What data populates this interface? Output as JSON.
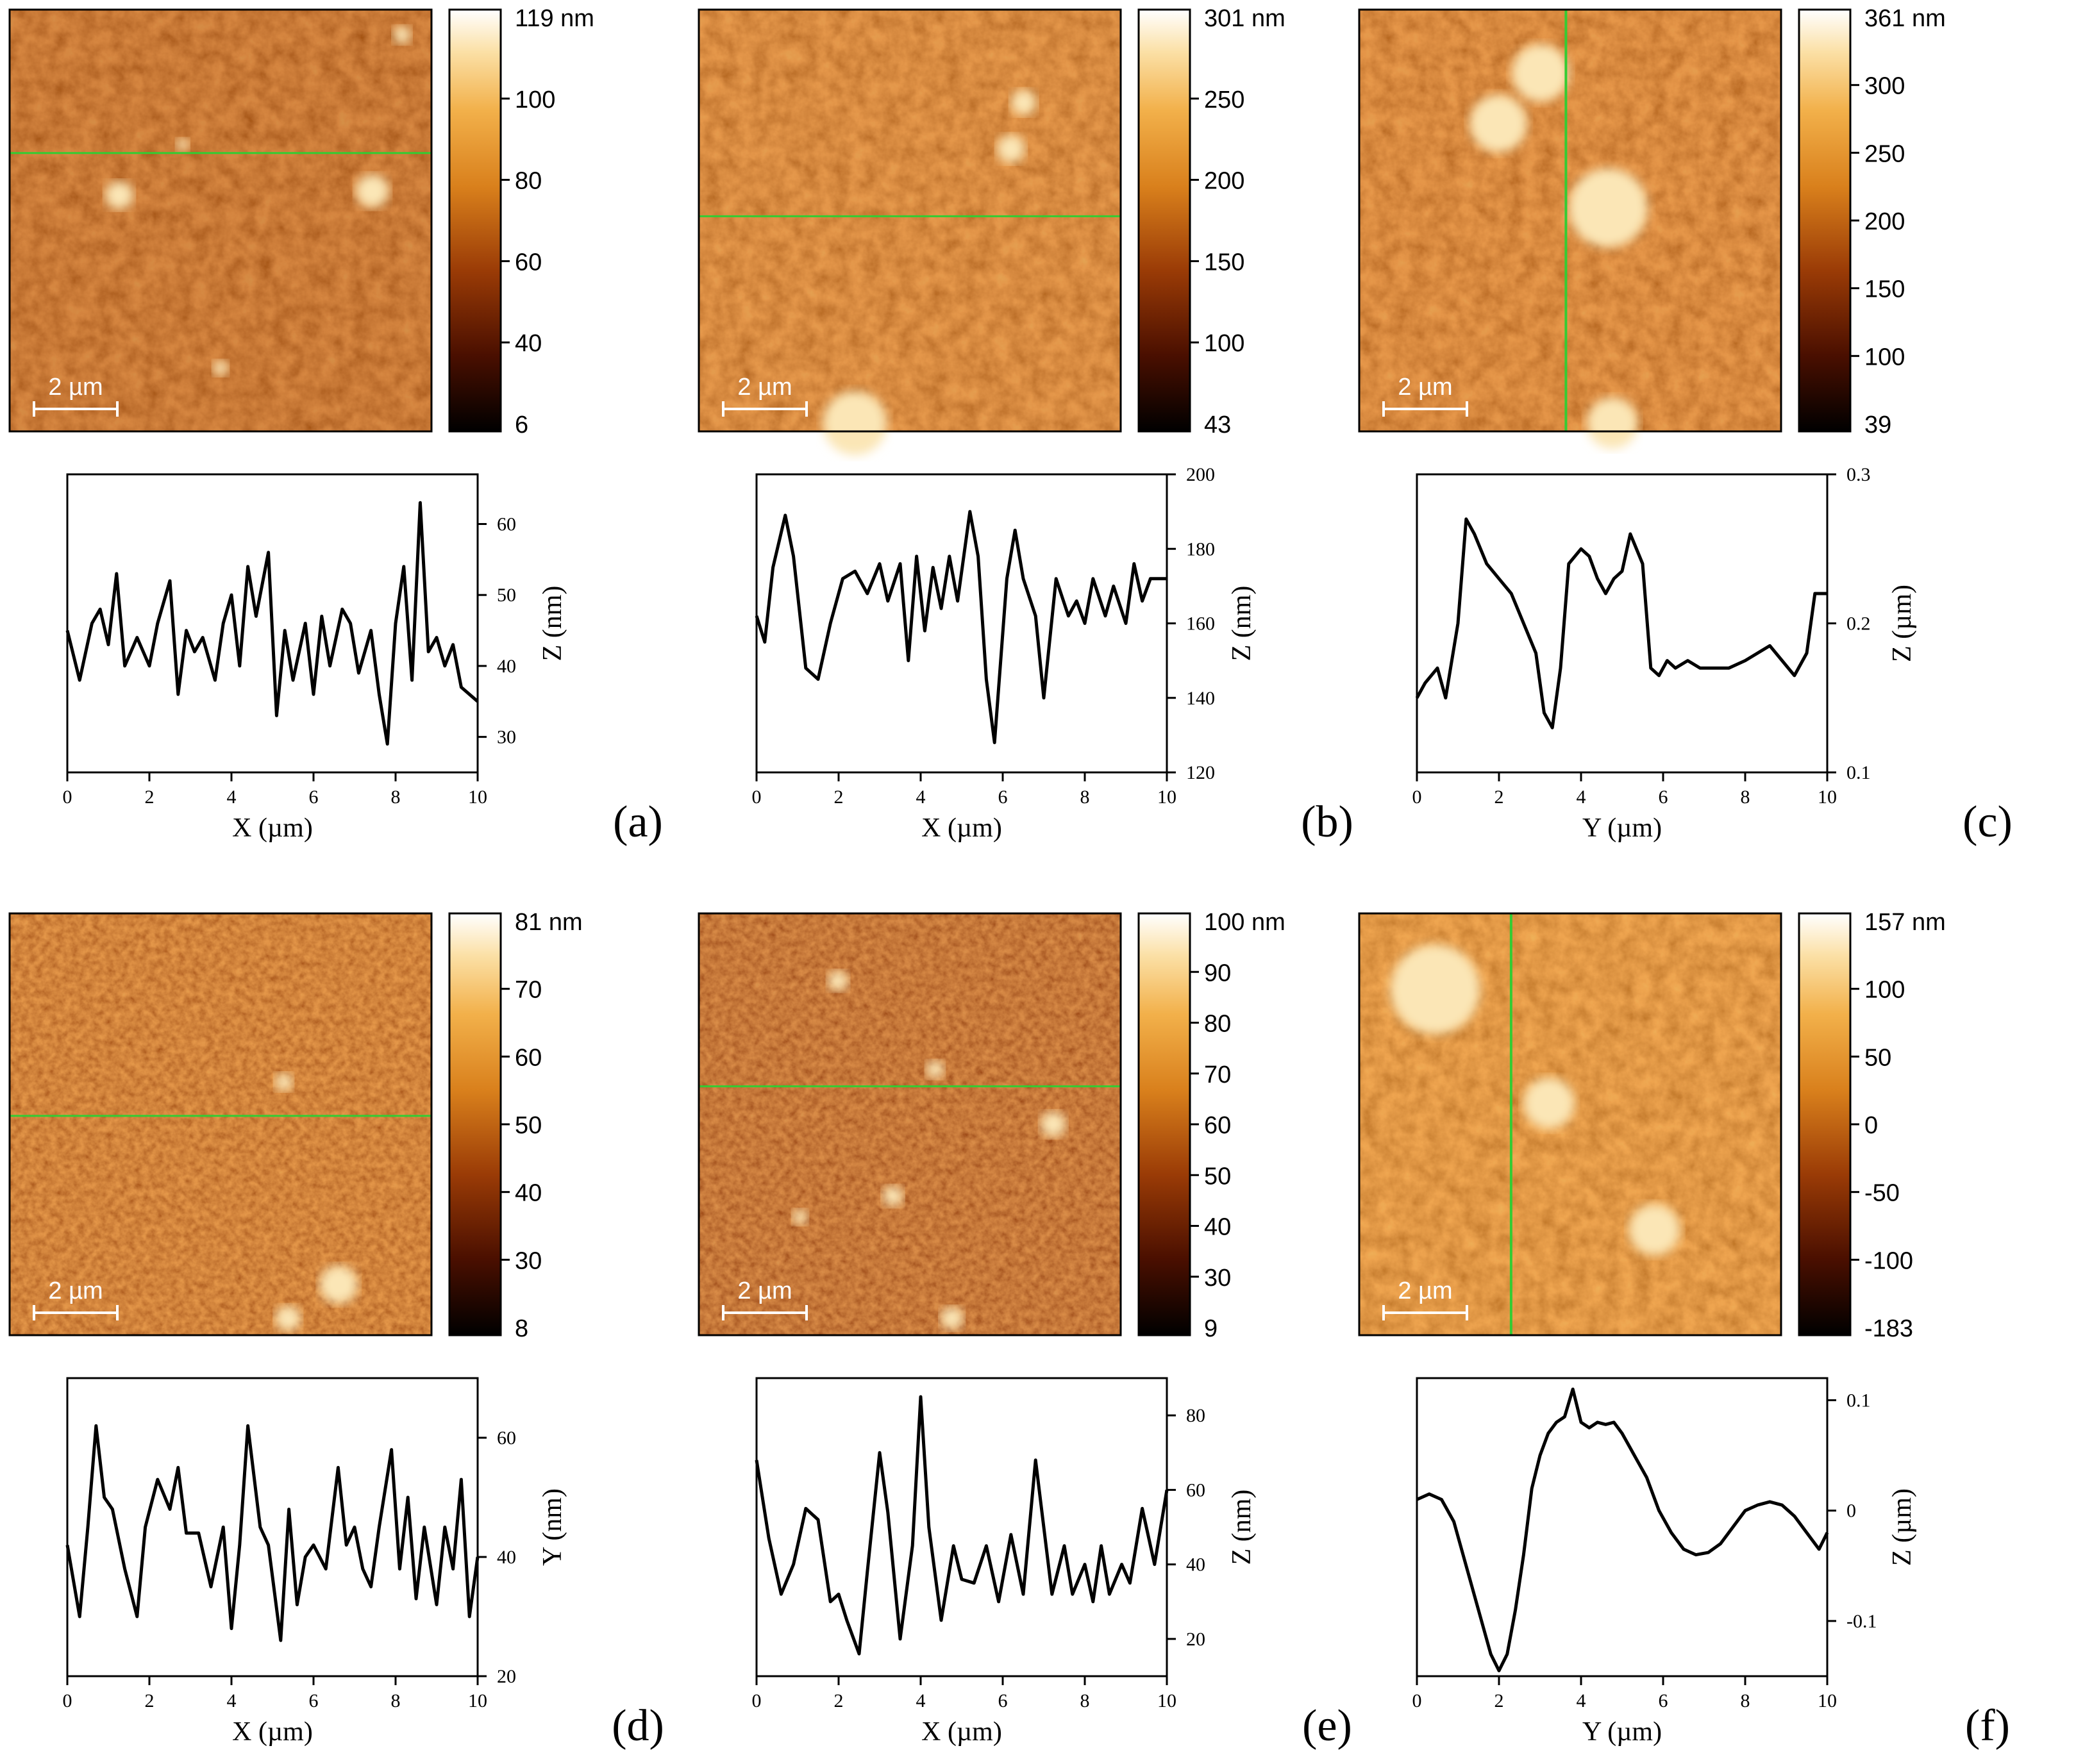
{
  "figure": {
    "panels": [
      {
        "letter": "(a)",
        "afm": {
          "scale_bar": "2 µm",
          "cbar_ticks": [
            "119 nm",
            "100",
            "80",
            "60",
            "40",
            "6"
          ],
          "colormap": "afm-orange",
          "cut_line": "horizontal",
          "line_color": "#33cc33"
        },
        "profile": {
          "type": "line",
          "xlabel": "X (µm)",
          "ylabel": "Z (nm)",
          "xlim": [
            0,
            10
          ],
          "ylim": [
            25,
            67
          ],
          "xticks": [
            0,
            2,
            4,
            6,
            8,
            10
          ],
          "yticks": [
            30,
            40,
            50,
            60
          ],
          "x": [
            0,
            0.3,
            0.6,
            0.8,
            1.0,
            1.2,
            1.4,
            1.7,
            2.0,
            2.2,
            2.5,
            2.7,
            2.9,
            3.1,
            3.3,
            3.6,
            3.8,
            4.0,
            4.2,
            4.4,
            4.6,
            4.9,
            5.1,
            5.3,
            5.5,
            5.8,
            6.0,
            6.2,
            6.4,
            6.7,
            6.9,
            7.1,
            7.4,
            7.6,
            7.8,
            8.0,
            8.2,
            8.4,
            8.6,
            8.8,
            9.0,
            9.2,
            9.4,
            9.6,
            10.0
          ],
          "y": [
            45,
            38,
            46,
            48,
            43,
            53,
            40,
            44,
            40,
            46,
            52,
            36,
            45,
            42,
            44,
            38,
            46,
            50,
            40,
            54,
            47,
            56,
            33,
            45,
            38,
            46,
            36,
            47,
            40,
            48,
            46,
            39,
            45,
            36,
            29,
            46,
            54,
            38,
            63,
            42,
            44,
            40,
            43,
            37,
            35
          ]
        }
      },
      {
        "letter": "(b)",
        "afm": {
          "scale_bar": "2 µm",
          "cbar_ticks": [
            "301 nm",
            "250",
            "200",
            "150",
            "100",
            "43"
          ],
          "colormap": "afm-orange",
          "cut_line": "horizontal",
          "line_color": "#33cc33"
        },
        "profile": {
          "type": "line",
          "xlabel": "X (µm)",
          "ylabel": "Z (nm)",
          "xlim": [
            0,
            10
          ],
          "ylim": [
            120,
            200
          ],
          "xticks": [
            0,
            2,
            4,
            6,
            8,
            10
          ],
          "yticks": [
            120,
            140,
            160,
            180,
            200
          ],
          "x": [
            0,
            0.2,
            0.4,
            0.7,
            0.9,
            1.2,
            1.5,
            1.8,
            2.1,
            2.4,
            2.7,
            3.0,
            3.2,
            3.5,
            3.7,
            3.9,
            4.1,
            4.3,
            4.5,
            4.7,
            4.9,
            5.2,
            5.4,
            5.6,
            5.8,
            6.1,
            6.3,
            6.5,
            6.8,
            7.0,
            7.3,
            7.6,
            7.8,
            8.0,
            8.2,
            8.5,
            8.7,
            9.0,
            9.2,
            9.4,
            9.6,
            10.0
          ],
          "y": [
            162,
            155,
            175,
            189,
            178,
            148,
            145,
            160,
            172,
            174,
            168,
            176,
            166,
            176,
            150,
            178,
            158,
            175,
            164,
            178,
            166,
            190,
            178,
            145,
            128,
            172,
            185,
            172,
            162,
            140,
            172,
            162,
            166,
            160,
            172,
            162,
            170,
            160,
            176,
            166,
            172,
            172
          ]
        }
      },
      {
        "letter": "(c)",
        "afm": {
          "scale_bar": "2 µm",
          "cbar_ticks": [
            "361 nm",
            "300",
            "250",
            "200",
            "150",
            "100",
            "39"
          ],
          "colormap": "afm-orange",
          "cut_line": "vertical",
          "line_color": "#33cc33"
        },
        "profile": {
          "type": "line",
          "xlabel": "Y (µm)",
          "ylabel": "Z (µm)",
          "xlim": [
            0,
            10
          ],
          "ylim": [
            0.1,
            0.3
          ],
          "xticks": [
            0,
            2,
            4,
            6,
            8,
            10
          ],
          "yticks": [
            0.1,
            0.2,
            0.3
          ],
          "x": [
            0,
            0.2,
            0.5,
            0.7,
            1.0,
            1.2,
            1.4,
            1.7,
            2.0,
            2.3,
            2.6,
            2.9,
            3.1,
            3.3,
            3.5,
            3.7,
            4.0,
            4.2,
            4.4,
            4.6,
            4.8,
            5.0,
            5.2,
            5.5,
            5.7,
            5.9,
            6.1,
            6.3,
            6.6,
            6.9,
            7.2,
            7.6,
            8.0,
            8.3,
            8.6,
            8.9,
            9.2,
            9.5,
            9.7,
            10.0
          ],
          "y": [
            0.15,
            0.16,
            0.17,
            0.15,
            0.2,
            0.27,
            0.26,
            0.24,
            0.23,
            0.22,
            0.2,
            0.18,
            0.14,
            0.13,
            0.17,
            0.24,
            0.25,
            0.245,
            0.23,
            0.22,
            0.23,
            0.235,
            0.26,
            0.24,
            0.17,
            0.165,
            0.175,
            0.17,
            0.175,
            0.17,
            0.17,
            0.17,
            0.175,
            0.18,
            0.185,
            0.175,
            0.165,
            0.18,
            0.22,
            0.22
          ]
        }
      },
      {
        "letter": "(d)",
        "afm": {
          "scale_bar": "2 µm",
          "cbar_ticks": [
            "81 nm",
            "70",
            "60",
            "50",
            "40",
            "30",
            "8"
          ],
          "colormap": "afm-orange",
          "cut_line": "horizontal",
          "line_color": "#33cc33"
        },
        "profile": {
          "type": "line",
          "xlabel": "X (µm)",
          "ylabel": "Y (nm)",
          "xlim": [
            0,
            10
          ],
          "ylim": [
            20,
            70
          ],
          "xticks": [
            0,
            2,
            4,
            6,
            8,
            10
          ],
          "yticks": [
            20,
            40,
            60
          ],
          "x": [
            0,
            0.3,
            0.5,
            0.7,
            0.9,
            1.1,
            1.4,
            1.7,
            1.9,
            2.2,
            2.5,
            2.7,
            2.9,
            3.2,
            3.5,
            3.8,
            4.0,
            4.2,
            4.4,
            4.7,
            4.9,
            5.2,
            5.4,
            5.6,
            5.8,
            6.0,
            6.3,
            6.6,
            6.8,
            7.0,
            7.2,
            7.4,
            7.6,
            7.9,
            8.1,
            8.3,
            8.5,
            8.7,
            9.0,
            9.2,
            9.4,
            9.6,
            9.8,
            10.0
          ],
          "y": [
            42,
            30,
            45,
            62,
            50,
            48,
            38,
            30,
            45,
            53,
            48,
            55,
            44,
            44,
            35,
            45,
            28,
            42,
            62,
            45,
            42,
            26,
            48,
            32,
            40,
            42,
            38,
            55,
            42,
            45,
            38,
            35,
            45,
            58,
            38,
            50,
            33,
            45,
            32,
            45,
            38,
            53,
            30,
            40
          ]
        }
      },
      {
        "letter": "(e)",
        "afm": {
          "scale_bar": "2 µm",
          "cbar_ticks": [
            "100 nm",
            "90",
            "80",
            "70",
            "60",
            "50",
            "40",
            "30",
            "9"
          ],
          "colormap": "afm-orange",
          "cut_line": "horizontal",
          "line_color": "#33cc33"
        },
        "profile": {
          "type": "line",
          "xlabel": "X (µm)",
          "ylabel": "Z (nm)",
          "xlim": [
            0,
            10
          ],
          "ylim": [
            10,
            90
          ],
          "xticks": [
            0,
            2,
            4,
            6,
            8,
            10
          ],
          "yticks": [
            20,
            40,
            60,
            80
          ],
          "x": [
            0,
            0.3,
            0.6,
            0.9,
            1.2,
            1.5,
            1.8,
            2.0,
            2.2,
            2.5,
            2.7,
            3.0,
            3.2,
            3.5,
            3.8,
            4.0,
            4.2,
            4.5,
            4.8,
            5.0,
            5.3,
            5.6,
            5.9,
            6.2,
            6.5,
            6.8,
            7.0,
            7.2,
            7.5,
            7.7,
            8.0,
            8.2,
            8.4,
            8.6,
            8.9,
            9.1,
            9.4,
            9.7,
            10.0
          ],
          "y": [
            68,
            47,
            32,
            40,
            55,
            52,
            30,
            32,
            25,
            16,
            38,
            70,
            54,
            20,
            45,
            85,
            50,
            25,
            45,
            36,
            35,
            45,
            30,
            48,
            32,
            68,
            50,
            32,
            45,
            32,
            40,
            30,
            45,
            32,
            40,
            35,
            55,
            40,
            60
          ]
        }
      },
      {
        "letter": "(f)",
        "afm": {
          "scale_bar": "2 µm",
          "cbar_ticks": [
            "157 nm",
            "100",
            "50",
            "0",
            "-50",
            "-100",
            "-183"
          ],
          "colormap": "afm-orange",
          "cut_line": "vertical",
          "line_color": "#33cc33"
        },
        "profile": {
          "type": "line",
          "xlabel": "Y (µm)",
          "ylabel": "Z (µm)",
          "xlim": [
            0,
            10
          ],
          "ylim": [
            -0.15,
            0.12
          ],
          "xticks": [
            0,
            2,
            4,
            6,
            8,
            10
          ],
          "yticks": [
            -0.1,
            0.0,
            0.1
          ],
          "x": [
            0,
            0.3,
            0.6,
            0.9,
            1.2,
            1.5,
            1.8,
            2.0,
            2.2,
            2.4,
            2.6,
            2.8,
            3.0,
            3.2,
            3.4,
            3.6,
            3.8,
            4.0,
            4.2,
            4.4,
            4.6,
            4.8,
            5.0,
            5.3,
            5.6,
            5.9,
            6.2,
            6.5,
            6.8,
            7.1,
            7.4,
            7.7,
            8.0,
            8.3,
            8.6,
            8.9,
            9.2,
            9.5,
            9.8,
            10.0
          ],
          "y": [
            0.01,
            0.015,
            0.01,
            -0.01,
            -0.05,
            -0.09,
            -0.13,
            -0.145,
            -0.13,
            -0.09,
            -0.04,
            0.02,
            0.05,
            0.07,
            0.08,
            0.085,
            0.11,
            0.08,
            0.075,
            0.08,
            0.078,
            0.08,
            0.07,
            0.05,
            0.03,
            0.0,
            -0.02,
            -0.035,
            -0.04,
            -0.038,
            -0.03,
            -0.015,
            0.0,
            0.005,
            0.008,
            0.005,
            -0.005,
            -0.02,
            -0.035,
            -0.02
          ]
        }
      }
    ]
  }
}
